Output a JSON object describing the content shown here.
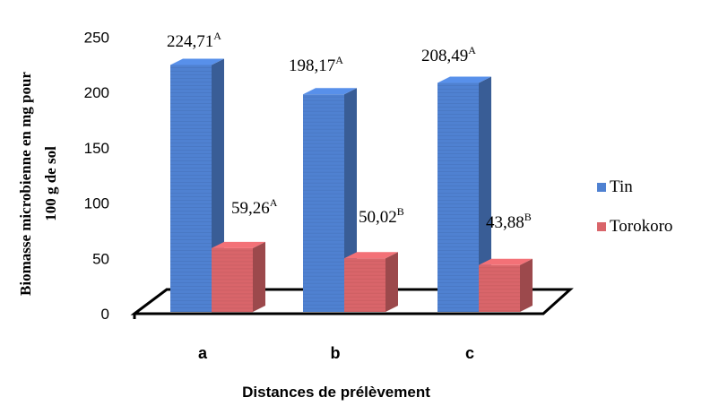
{
  "chart_data": {
    "type": "bar",
    "categories": [
      "a",
      "b",
      "c"
    ],
    "series": [
      {
        "name": "Tin",
        "values": [
          224.71,
          198.17,
          208.49
        ],
        "labels": [
          "224,71",
          "198,17",
          "208,49"
        ],
        "letters": [
          "A",
          "A",
          "A"
        ],
        "color": "#4f81d1"
      },
      {
        "name": "Torokoro",
        "values": [
          59.26,
          50.02,
          43.88
        ],
        "labels": [
          "59,26",
          "50,02",
          "43,88"
        ],
        "letters": [
          "A",
          "B",
          "B"
        ],
        "color": "#d9656a"
      }
    ],
    "ylabel_line1": "Biomasse microbienne en mg  pour",
    "ylabel_line2": "100 g de sol",
    "xlabel": "Distances de prélèvement",
    "ylim": [
      0,
      250
    ],
    "yticks": [
      "0",
      "50",
      "100",
      "150",
      "200",
      "250"
    ],
    "legend_position": "right",
    "style": "3d-column"
  }
}
